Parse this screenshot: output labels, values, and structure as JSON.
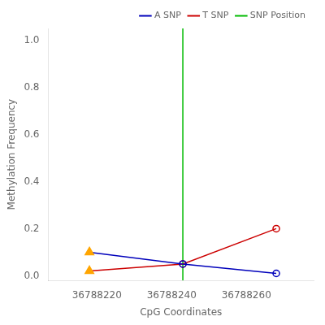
{
  "chart_data": {
    "type": "line",
    "x_label": "CpG Coordinates",
    "y_label": "Methylation Frequency",
    "xlim": [
      36788207,
      36788278
    ],
    "xticks": [
      36788220,
      36788240,
      36788260
    ],
    "ylim": [
      -0.02,
      1.05
    ],
    "yticks": [
      {
        "value": 0.0,
        "label": "0.0"
      },
      0.2,
      0.4,
      0.6,
      0.8,
      {
        "value": 1.0,
        "label": "1.0"
      }
    ],
    "grid": false,
    "legend": "upper right",
    "series": [
      {
        "name": "A SNP",
        "color": "#0000bb",
        "x": [
          36788218,
          36788243,
          36788268
        ],
        "values": [
          0.1,
          0.05,
          0.01
        ],
        "marker": [
          "triangle",
          "circle_open",
          "circle_open"
        ],
        "colors": [
          "#FFA500",
          "#0000bb",
          "#0000bb"
        ]
      },
      {
        "name": "T SNP",
        "color": "#cc0000",
        "x": [
          36788218,
          36788243,
          36788268
        ],
        "values": [
          0.02,
          0.05,
          0.2
        ],
        "marker": [
          "triangle",
          "circle_open",
          "circle_open"
        ],
        "colors": [
          "#FFA500",
          "#cc0000",
          "#cc0000"
        ]
      },
      {
        "name": "SNP Position",
        "type": "vline",
        "color": "#00bb00",
        "x": 36788243
      }
    ]
  }
}
